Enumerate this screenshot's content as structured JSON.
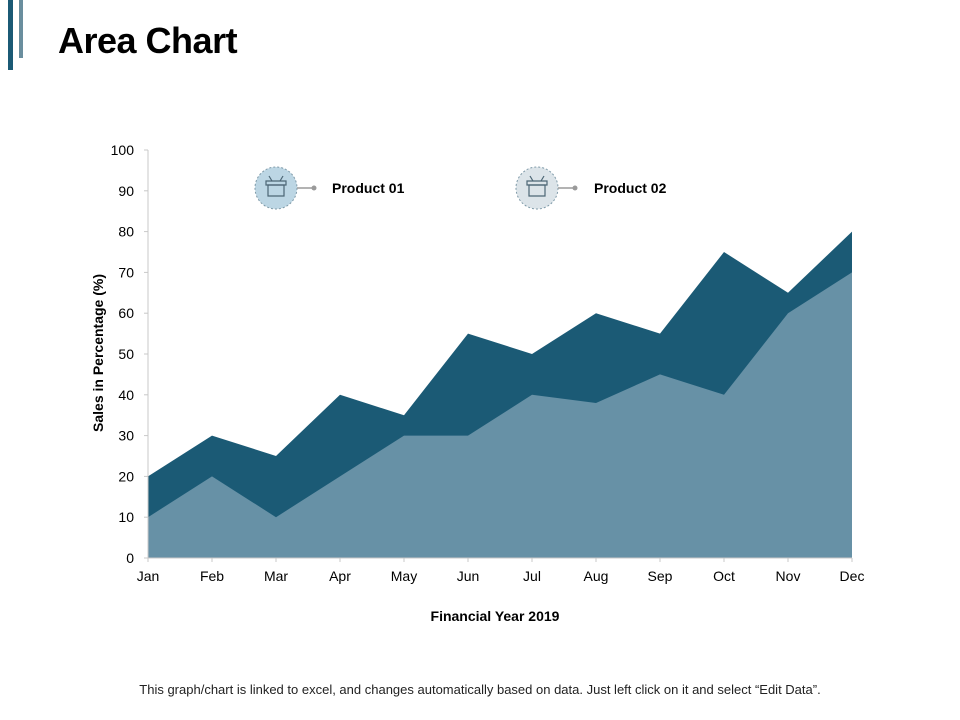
{
  "header": {
    "title": "Area Chart"
  },
  "footnote": "This graph/chart is linked to excel, and changes automatically based on data. Just left click on it and select “Edit Data”.",
  "colors": {
    "product_01": "#6791a6",
    "product_02": "#1b5a75",
    "accent": "#1b5a75"
  },
  "legend": {
    "icons": [
      "box-icon",
      "box-icon"
    ]
  },
  "chart_data": {
    "type": "area",
    "categories": [
      "Jan",
      "Feb",
      "Mar",
      "Apr",
      "May",
      "Jun",
      "Jul",
      "Aug",
      "Sep",
      "Oct",
      "Nov",
      "Dec"
    ],
    "series": [
      {
        "name": "Product 01",
        "values": [
          10,
          20,
          10,
          20,
          30,
          30,
          40,
          38,
          45,
          40,
          60,
          70
        ]
      },
      {
        "name": "Product 02",
        "values": [
          20,
          30,
          25,
          40,
          35,
          55,
          50,
          60,
          55,
          75,
          65,
          80
        ]
      }
    ],
    "xlabel": "Financial Year 2019",
    "ylabel": "Sales in Percentage (%)",
    "ylim": [
      0,
      100
    ],
    "yticks": [
      0,
      10,
      20,
      30,
      40,
      50,
      60,
      70,
      80,
      90,
      100
    ],
    "grid": false,
    "legend_position": "top"
  }
}
